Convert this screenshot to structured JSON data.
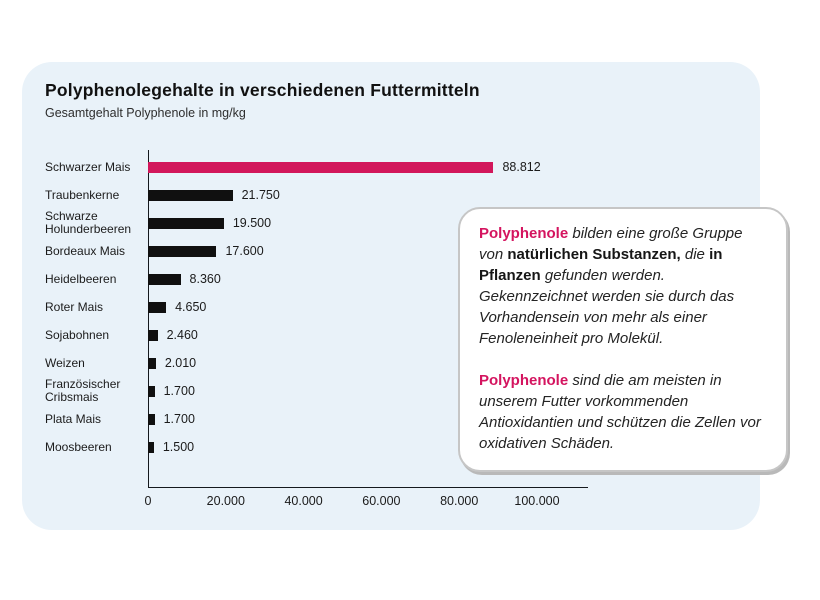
{
  "colors": {
    "card_background": "#e9f2f9",
    "accent_pink": "#d4145f",
    "bar_black": "#101010",
    "axis": "#15191e"
  },
  "header": {
    "title": "Polyphenolegehalte in verschiedenen Futtermitteln",
    "subtitle": "Gesamtgehalt Polyphenole in mg/kg"
  },
  "chart_data": {
    "type": "bar",
    "orientation": "horizontal",
    "title": "Polyphenolegehalte in verschiedenen Futtermitteln",
    "subtitle": "Gesamtgehalt Polyphenole in mg/kg",
    "unit": "mg/kg",
    "categories": [
      "Schwarzer Mais",
      "Traubenkerne",
      "Schwarze Holunderbeeren",
      "Bordeaux Mais",
      "Heidelbeeren",
      "Roter Mais",
      "Sojabohnen",
      "Weizen",
      "Französischer Cribsmais",
      "Plata Mais",
      "Moosbeeren"
    ],
    "values": [
      88812,
      21750,
      19500,
      17600,
      8360,
      4650,
      2460,
      2010,
      1700,
      1700,
      1500
    ],
    "value_labels": [
      "88.812",
      "21.750",
      "19.500",
      "17.600",
      "8.360",
      "4.650",
      "2.460",
      "2.010",
      "1.700",
      "1.700",
      "1.500"
    ],
    "bar_colors": [
      "#d2175b",
      "#101010",
      "#101010",
      "#101010",
      "#101010",
      "#101010",
      "#101010",
      "#101010",
      "#101010",
      "#101010",
      "#101010"
    ],
    "xlim": [
      0,
      100000
    ],
    "x_ticks": [
      0,
      20000,
      40000,
      60000,
      80000,
      100000
    ],
    "x_tick_labels": [
      "0",
      "20.000",
      "40.000",
      "60.000",
      "80.000",
      "100.000"
    ],
    "grid": false,
    "legend": false
  },
  "infobox": {
    "paragraphs": [
      [
        {
          "text": "Polyphenole",
          "style": "brand"
        },
        {
          "text": " bilden eine große Gruppe von ",
          "style": "normal"
        },
        {
          "text": "natürlichen Substanzen,",
          "style": "bold"
        },
        {
          "text": " die ",
          "style": "normal"
        },
        {
          "text": "in Pflanzen",
          "style": "bold"
        },
        {
          "text": " gefunden werden. Gekennzeichnet werden sie durch das Vorhandensein von mehr als einer Fenoleneinheit pro Molekül.",
          "style": "normal"
        }
      ],
      [
        {
          "text": "Polyphenole",
          "style": "brand"
        },
        {
          "text": " sind die am meisten in unserem Futter vorkommenden Antioxidantien und schützen die Zellen vor oxidativen Schäden.",
          "style": "normal"
        }
      ]
    ]
  }
}
